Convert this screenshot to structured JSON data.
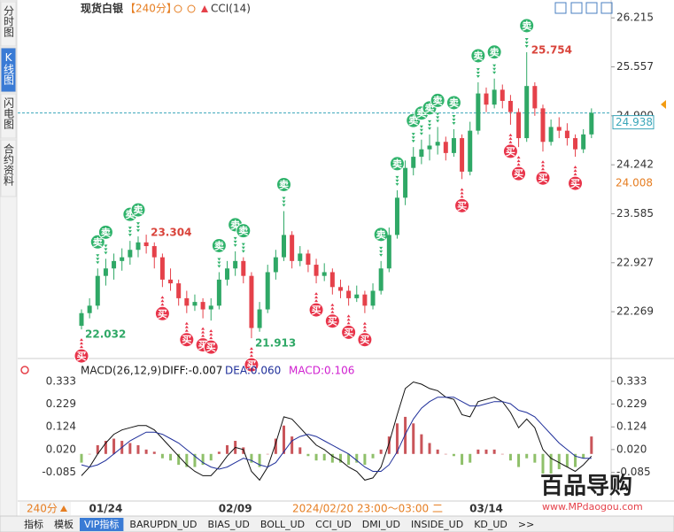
{
  "chart_data": {
    "type": "candlestick",
    "header": {
      "symbol": "现货白银",
      "period": "【240分】",
      "indicator": "CCI(14)"
    },
    "sidebar_tabs": [
      "分时图",
      "K线图",
      "闪电图",
      "合约资料"
    ],
    "up_color": "#2fa866",
    "down_color": "#e5414a",
    "sell_color": "#2fb36b",
    "buy_color": "#e8344a",
    "ylim": [
      21.7,
      26.36
    ],
    "yticks": [
      26.215,
      25.557,
      {
        "value": 24.9,
        "label": "24.900"
      },
      24.242,
      23.585,
      22.927,
      22.269
    ],
    "last_price": 24.938,
    "ref_price": 24.008,
    "high_labels": [
      23.304,
      25.754
    ],
    "low_labels": [
      22.032,
      21.913
    ],
    "categories": [
      null,
      null,
      null,
      "01/24",
      null,
      null,
      null,
      null,
      null,
      null,
      null,
      null,
      null,
      null,
      null,
      null,
      null,
      null,
      null,
      "02/09",
      null,
      null,
      null,
      null,
      null,
      null,
      null,
      null,
      null,
      null,
      null,
      null,
      null,
      null,
      null,
      null,
      null,
      null,
      null,
      null,
      null,
      null,
      null,
      null,
      null,
      null,
      null,
      null,
      null,
      null,
      "03/14",
      null,
      null,
      null,
      null,
      null,
      null,
      null,
      null,
      null,
      null,
      null,
      null,
      null
    ],
    "cursor_label": "2024/02/20 23:00～03:00 二",
    "candles": [
      [
        22.08,
        22.3,
        22.032,
        22.25
      ],
      [
        22.25,
        22.45,
        22.18,
        22.35
      ],
      [
        22.35,
        22.85,
        22.3,
        22.75
      ],
      [
        22.75,
        22.98,
        22.62,
        22.85
      ],
      [
        22.85,
        23.05,
        22.7,
        22.95
      ],
      [
        22.95,
        23.12,
        22.82,
        23.0
      ],
      [
        23.0,
        23.22,
        22.9,
        23.1
      ],
      [
        23.1,
        23.28,
        23.0,
        23.2
      ],
      [
        23.2,
        23.304,
        23.05,
        23.15
      ],
      [
        23.15,
        23.2,
        22.85,
        23.0
      ],
      [
        23.0,
        23.05,
        22.6,
        22.7
      ],
      [
        22.7,
        22.85,
        22.55,
        22.65
      ],
      [
        22.65,
        22.7,
        22.35,
        22.45
      ],
      [
        22.45,
        22.55,
        22.25,
        22.35
      ],
      [
        22.35,
        22.5,
        22.28,
        22.4
      ],
      [
        22.4,
        22.45,
        22.18,
        22.3
      ],
      [
        22.3,
        22.45,
        22.15,
        22.35
      ],
      [
        22.35,
        22.8,
        22.3,
        22.7
      ],
      [
        22.7,
        22.95,
        22.62,
        22.85
      ],
      [
        22.85,
        23.08,
        22.75,
        22.95
      ],
      [
        22.95,
        23.0,
        22.65,
        22.75
      ],
      [
        22.75,
        22.8,
        21.913,
        22.05
      ],
      [
        22.05,
        22.4,
        22.0,
        22.3
      ],
      [
        22.3,
        22.9,
        22.25,
        22.8
      ],
      [
        22.8,
        23.1,
        22.7,
        23.0
      ],
      [
        23.0,
        23.62,
        22.95,
        23.3
      ],
      [
        23.3,
        23.35,
        22.85,
        22.95
      ],
      [
        22.95,
        23.15,
        22.88,
        23.05
      ],
      [
        23.05,
        23.1,
        22.8,
        22.9
      ],
      [
        22.9,
        22.98,
        22.65,
        22.75
      ],
      [
        22.75,
        22.92,
        22.68,
        22.8
      ],
      [
        22.8,
        22.85,
        22.5,
        22.6
      ],
      [
        22.6,
        22.7,
        22.45,
        22.55
      ],
      [
        22.55,
        22.62,
        22.35,
        22.45
      ],
      [
        22.45,
        22.62,
        22.4,
        22.5
      ],
      [
        22.5,
        22.55,
        22.25,
        22.35
      ],
      [
        22.35,
        22.65,
        22.3,
        22.55
      ],
      [
        22.55,
        22.95,
        22.5,
        22.85
      ],
      [
        22.85,
        23.4,
        22.8,
        23.3
      ],
      [
        23.3,
        23.9,
        23.25,
        23.8
      ],
      [
        23.8,
        24.3,
        23.7,
        24.2
      ],
      [
        24.2,
        24.48,
        24.1,
        24.35
      ],
      [
        24.35,
        24.58,
        24.25,
        24.45
      ],
      [
        24.45,
        24.65,
        24.3,
        24.5
      ],
      [
        24.5,
        24.75,
        24.38,
        24.55
      ],
      [
        24.55,
        24.62,
        24.3,
        24.4
      ],
      [
        24.4,
        24.72,
        24.35,
        24.6
      ],
      [
        24.6,
        24.65,
        24.05,
        24.15
      ],
      [
        24.15,
        24.82,
        24.1,
        24.7
      ],
      [
        24.7,
        25.35,
        24.65,
        25.2
      ],
      [
        25.2,
        25.28,
        24.95,
        25.05
      ],
      [
        25.05,
        25.4,
        25.0,
        25.25
      ],
      [
        25.25,
        25.32,
        25.0,
        25.1
      ],
      [
        25.1,
        25.18,
        24.78,
        24.95
      ],
      [
        24.95,
        25.0,
        24.48,
        24.6
      ],
      [
        24.6,
        25.754,
        24.55,
        25.3
      ],
      [
        25.3,
        25.35,
        24.9,
        25.0
      ],
      [
        25.0,
        25.05,
        24.42,
        24.55
      ],
      [
        24.55,
        24.85,
        24.5,
        24.75
      ],
      [
        24.75,
        24.88,
        24.6,
        24.7
      ],
      [
        24.7,
        24.8,
        24.5,
        24.6
      ],
      [
        24.6,
        24.65,
        24.35,
        24.45
      ],
      [
        24.45,
        24.72,
        24.4,
        24.65
      ],
      [
        24.65,
        25.0,
        24.6,
        24.94
      ]
    ],
    "signals": [
      "买",
      null,
      "卖",
      "卖",
      null,
      null,
      "卖",
      "卖",
      null,
      null,
      "买",
      null,
      null,
      "买",
      null,
      "买",
      "买",
      "卖",
      null,
      "卖",
      "卖",
      "买",
      null,
      null,
      null,
      "卖",
      null,
      null,
      null,
      "买",
      null,
      "买",
      null,
      "买",
      null,
      "买",
      null,
      "卖",
      null,
      "卖",
      null,
      "卖",
      "卖",
      "卖",
      "卖",
      null,
      "卖",
      "买",
      null,
      "卖",
      null,
      "卖",
      null,
      "买",
      "买",
      "卖",
      null,
      "买",
      null,
      null,
      null,
      "买",
      null,
      null
    ],
    "macd": {
      "title": "MACD(26,12,9)",
      "diff_label": "DIFF:-0.007",
      "dea_label": "DEA:0.060",
      "macd_label": "MACD:0.106",
      "diff_color": "#111111",
      "dea_color": "#1f2f9a",
      "macd_color": "#d020d0",
      "pos_color": "#c9555a",
      "neg_color": "#8fc06a",
      "ylim": [
        -0.216,
        0.397
      ],
      "yticks": [
        0.333,
        0.229,
        0.124,
        {
          "value": 0.02,
          "label": "0.020"
        },
        -0.085
      ],
      "diff": [
        -0.1,
        -0.06,
        0.0,
        0.05,
        0.09,
        0.11,
        0.12,
        0.13,
        0.13,
        0.11,
        0.07,
        0.03,
        -0.01,
        -0.05,
        -0.08,
        -0.1,
        -0.1,
        -0.06,
        -0.01,
        0.03,
        0.02,
        -0.08,
        -0.12,
        -0.06,
        0.05,
        0.17,
        0.16,
        0.12,
        0.08,
        0.04,
        0.02,
        -0.01,
        -0.03,
        -0.06,
        -0.08,
        -0.12,
        -0.11,
        -0.06,
        0.05,
        0.18,
        0.3,
        0.33,
        0.32,
        0.3,
        0.29,
        0.26,
        0.25,
        0.18,
        0.17,
        0.24,
        0.25,
        0.26,
        0.24,
        0.19,
        0.12,
        0.16,
        0.12,
        0.02,
        -0.02,
        -0.04,
        -0.06,
        -0.08,
        -0.05,
        -0.01
      ],
      "dea": [
        -0.05,
        -0.06,
        -0.05,
        -0.03,
        0.0,
        0.03,
        0.06,
        0.08,
        0.1,
        0.1,
        0.09,
        0.07,
        0.05,
        0.02,
        -0.01,
        -0.04,
        -0.06,
        -0.07,
        -0.06,
        -0.04,
        -0.02,
        -0.03,
        -0.05,
        -0.06,
        -0.04,
        0.01,
        0.06,
        0.08,
        0.09,
        0.08,
        0.06,
        0.04,
        0.02,
        0.0,
        -0.03,
        -0.06,
        -0.08,
        -0.08,
        -0.05,
        0.01,
        0.09,
        0.16,
        0.21,
        0.24,
        0.26,
        0.26,
        0.26,
        0.24,
        0.22,
        0.22,
        0.23,
        0.24,
        0.24,
        0.23,
        0.2,
        0.19,
        0.17,
        0.13,
        0.09,
        0.05,
        0.02,
        -0.01,
        -0.02,
        -0.02
      ],
      "hist": [
        -0.04,
        0.0,
        0.04,
        0.06,
        0.07,
        0.06,
        0.05,
        0.04,
        0.02,
        0.01,
        -0.02,
        -0.03,
        -0.05,
        -0.06,
        -0.06,
        -0.05,
        -0.03,
        0.01,
        0.04,
        0.06,
        0.03,
        -0.04,
        -0.06,
        0.0,
        0.07,
        0.13,
        0.08,
        0.03,
        -0.01,
        -0.03,
        -0.03,
        -0.04,
        -0.04,
        -0.05,
        -0.04,
        -0.05,
        -0.02,
        0.02,
        0.08,
        0.14,
        0.17,
        0.14,
        0.09,
        0.05,
        0.02,
        0.0,
        -0.01,
        -0.05,
        -0.04,
        0.02,
        0.02,
        0.02,
        0.0,
        -0.03,
        -0.06,
        -0.02,
        -0.04,
        -0.09,
        -0.09,
        -0.07,
        -0.06,
        -0.06,
        -0.02,
        0.08
      ]
    },
    "period_button": "240分",
    "bottom_tabs": [
      "指标",
      "模板",
      "VIP指标",
      "BARUPDN_UD",
      "BIAS_UD",
      "BOLL_UD",
      "CCI_UD",
      "DMI_UD",
      "INSIDE_UD",
      "KD_UD",
      ">>"
    ],
    "watermark": {
      "brand": "百品导购",
      "url": "www.MPdaogou.com"
    }
  }
}
